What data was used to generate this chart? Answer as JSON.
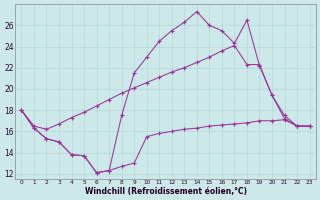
{
  "bg_color": "#cce8e8",
  "line_color": "#993399",
  "xlabel": "Windchill (Refroidissement éolien,°C)",
  "xlim": [
    -0.5,
    23.5
  ],
  "ylim": [
    11.5,
    28.0
  ],
  "yticks": [
    12,
    14,
    16,
    18,
    20,
    22,
    24,
    26
  ],
  "xticks": [
    0,
    1,
    2,
    3,
    4,
    5,
    6,
    7,
    8,
    9,
    10,
    11,
    12,
    13,
    14,
    15,
    16,
    17,
    18,
    19,
    20,
    21,
    22,
    23
  ],
  "curve1_x": [
    0,
    1,
    2,
    3,
    4,
    5,
    6,
    7,
    8,
    9,
    10,
    11,
    12,
    13,
    14,
    15,
    16,
    17,
    18,
    19,
    20,
    21,
    22,
    23
  ],
  "curve1_y": [
    18.0,
    16.3,
    15.3,
    15.0,
    13.8,
    13.7,
    12.1,
    12.3,
    12.7,
    13.0,
    15.5,
    15.8,
    16.0,
    16.2,
    16.3,
    16.5,
    16.6,
    16.7,
    16.8,
    17.0,
    17.0,
    17.1,
    16.5,
    16.5
  ],
  "curve2_x": [
    0,
    1,
    2,
    3,
    4,
    5,
    6,
    7,
    8,
    9,
    10,
    11,
    12,
    13,
    14,
    15,
    16,
    17,
    18,
    19,
    20,
    21,
    22,
    23
  ],
  "curve2_y": [
    18.0,
    16.3,
    15.3,
    15.0,
    13.8,
    13.7,
    12.1,
    12.3,
    17.5,
    21.5,
    23.0,
    24.5,
    25.5,
    26.3,
    27.3,
    26.0,
    25.5,
    24.3,
    26.5,
    22.2,
    19.4,
    17.2,
    16.5,
    16.5
  ],
  "curve3_x": [
    0,
    1,
    2,
    3,
    4,
    5,
    6,
    7,
    8,
    9,
    10,
    11,
    12,
    13,
    14,
    15,
    16,
    17,
    18,
    19,
    20,
    21,
    22,
    23
  ],
  "curve3_y": [
    18.0,
    16.5,
    16.2,
    16.7,
    17.3,
    17.8,
    18.4,
    19.0,
    19.6,
    20.1,
    20.6,
    21.1,
    21.6,
    22.0,
    22.5,
    23.0,
    23.6,
    24.1,
    22.3,
    22.3,
    19.4,
    17.5,
    16.5,
    16.5
  ]
}
